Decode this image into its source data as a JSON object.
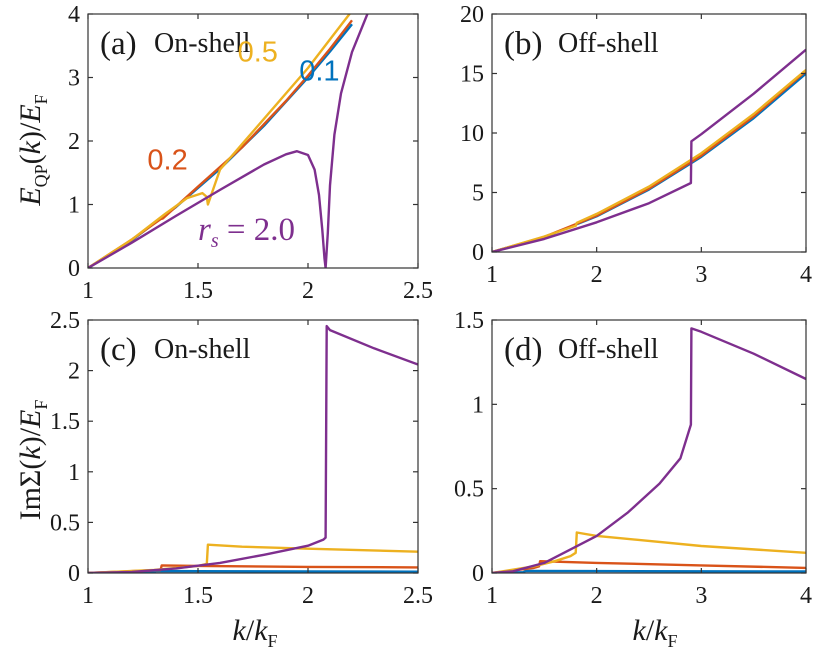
{
  "colors": {
    "rs_0.1": "#0072BD",
    "rs_0.2": "#D95319",
    "rs_0.5": "#EDB120",
    "rs_2.0": "#7E2F8E",
    "axis": "#333333"
  },
  "ylabels": {
    "top": "E_QP(k)/E_F",
    "bottom": "ImΣ(k)/E_F"
  },
  "xlabel": "k/k_F",
  "chart_data": [
    {
      "id": "a",
      "type": "line",
      "panel_label": "(a)",
      "subtitle": "On-shell",
      "xlabel": "",
      "ylabel": "E_QP(k)/E_F",
      "xlim": [
        1,
        2.5
      ],
      "ylim": [
        0,
        4
      ],
      "xticks": [
        1,
        1.5,
        2,
        2.5
      ],
      "yticks": [
        0,
        1,
        2,
        3,
        4
      ],
      "xtick_labels": [
        "1",
        "1.5",
        "2",
        "2.5"
      ],
      "ytick_labels": [
        "0",
        "1",
        "2",
        "3",
        "4"
      ],
      "annotations": [
        {
          "text": "0.5",
          "series": "0.5",
          "x": 1.68,
          "y": 3.25
        },
        {
          "text": "0.1",
          "series": "0.1",
          "x": 1.96,
          "y": 2.95
        },
        {
          "text": "0.2",
          "series": "0.2",
          "x": 1.27,
          "y": 1.55
        }
      ],
      "series": [
        {
          "key": "0.1",
          "x": [
            1,
            1.2,
            1.4,
            1.6,
            1.8,
            2.0,
            2.1,
            2.2
          ],
          "y": [
            0,
            0.44,
            0.96,
            1.56,
            2.24,
            3.0,
            3.41,
            3.84
          ]
        },
        {
          "key": "0.2",
          "x": [
            1,
            1.2,
            1.33,
            1.34,
            1.5,
            1.7,
            1.9,
            2.0,
            2.1,
            2.2
          ],
          "y": [
            0,
            0.45,
            0.77,
            0.78,
            1.28,
            1.9,
            2.63,
            3.03,
            3.45,
            3.9
          ]
        },
        {
          "key": "0.5",
          "x": [
            1,
            1.2,
            1.35,
            1.45,
            1.52,
            1.54,
            1.545,
            1.6,
            1.7,
            1.8,
            1.9,
            2.0,
            2.1,
            2.2
          ],
          "y": [
            0,
            0.45,
            0.85,
            1.1,
            1.18,
            1.12,
            1.0,
            1.55,
            1.95,
            2.35,
            2.75,
            3.15,
            3.6,
            4.05
          ]
        },
        {
          "key": "2.0",
          "x": [
            1,
            1.2,
            1.4,
            1.6,
            1.8,
            1.9,
            1.95,
            2.0,
            2.03,
            2.05,
            2.065,
            2.075,
            2.08,
            2.09,
            2.1,
            2.12,
            2.15,
            2.2,
            2.27
          ],
          "y": [
            0,
            0.4,
            0.82,
            1.23,
            1.63,
            1.79,
            1.84,
            1.78,
            1.55,
            1.15,
            0.6,
            0.15,
            0.0,
            0.55,
            1.3,
            2.1,
            2.75,
            3.4,
            4.0
          ]
        }
      ],
      "rs_label": {
        "prefix": "r",
        "sub": "s",
        "suffix": " = 2.0",
        "x": 1.5,
        "y": 0.6
      }
    },
    {
      "id": "b",
      "type": "line",
      "panel_label": "(b)",
      "subtitle": "Off-shell",
      "xlabel": "",
      "ylabel": "",
      "xlim": [
        1,
        4
      ],
      "ylim": [
        0,
        20
      ],
      "xticks": [
        1,
        2,
        3,
        4
      ],
      "yticks": [
        0,
        5,
        10,
        15,
        20
      ],
      "xtick_labels": [
        "1",
        "2",
        "3",
        "4"
      ],
      "ytick_labels": [
        "0",
        "5",
        "10",
        "15",
        "20"
      ],
      "series": [
        {
          "key": "0.1",
          "x": [
            1,
            1.5,
            2,
            2.5,
            3,
            3.5,
            4
          ],
          "y": [
            0,
            1.25,
            3.0,
            5.25,
            8.0,
            11.25,
            15.0
          ]
        },
        {
          "key": "0.2",
          "x": [
            1,
            1.5,
            2,
            2.5,
            3,
            3.5,
            4
          ],
          "y": [
            0,
            1.27,
            3.05,
            5.33,
            8.1,
            11.4,
            15.2
          ]
        },
        {
          "key": "0.5",
          "x": [
            1,
            1.5,
            1.8,
            1.81,
            2,
            2.5,
            3,
            3.5,
            4
          ],
          "y": [
            0,
            1.3,
            2.2,
            2.45,
            3.2,
            5.5,
            8.3,
            11.6,
            15.3
          ]
        },
        {
          "key": "2.0",
          "x": [
            1,
            1.5,
            2,
            2.5,
            2.9,
            2.905,
            3.0,
            3.5,
            4
          ],
          "y": [
            0,
            1.1,
            2.5,
            4.1,
            5.8,
            9.3,
            9.9,
            13.3,
            17.0
          ]
        }
      ]
    },
    {
      "id": "c",
      "type": "line",
      "panel_label": "(c)",
      "subtitle": "On-shell",
      "xlabel": "k/k_F",
      "ylabel": "ImΣ(k)/E_F",
      "xlim": [
        1,
        2.5
      ],
      "ylim": [
        0,
        2.5
      ],
      "xticks": [
        1,
        1.5,
        2,
        2.5
      ],
      "yticks": [
        0,
        0.5,
        1,
        1.5,
        2,
        2.5
      ],
      "xtick_labels": [
        "1",
        "1.5",
        "2",
        "2.5"
      ],
      "ytick_labels": [
        "0",
        "0.5",
        "1",
        "1.5",
        "2",
        "2.5"
      ],
      "series": [
        {
          "key": "0.1",
          "x": [
            1,
            1.3,
            1.31,
            1.5,
            2.0,
            2.5
          ],
          "y": [
            0,
            0.008,
            0.02,
            0.018,
            0.015,
            0.013
          ]
        },
        {
          "key": "0.2",
          "x": [
            1,
            1.33,
            1.335,
            1.5,
            2.0,
            2.5
          ],
          "y": [
            0,
            0.03,
            0.075,
            0.07,
            0.06,
            0.055
          ]
        },
        {
          "key": "0.5",
          "x": [
            1,
            1.3,
            1.5,
            1.54,
            1.545,
            1.7,
            2.0,
            2.5
          ],
          "y": [
            0,
            0.03,
            0.07,
            0.09,
            0.28,
            0.26,
            0.24,
            0.21
          ]
        },
        {
          "key": "2.0",
          "x": [
            1,
            1.2,
            1.4,
            1.6,
            1.8,
            2.0,
            2.07,
            2.08,
            2.085,
            2.1,
            2.3,
            2.5
          ],
          "y": [
            0,
            0.01,
            0.045,
            0.1,
            0.18,
            0.27,
            0.33,
            0.35,
            2.44,
            2.4,
            2.22,
            2.06
          ]
        }
      ]
    },
    {
      "id": "d",
      "type": "line",
      "panel_label": "(d)",
      "subtitle": "Off-shell",
      "xlabel": "k/k_F",
      "ylabel": "",
      "xlim": [
        1,
        4
      ],
      "ylim": [
        0,
        1.5
      ],
      "xticks": [
        1,
        2,
        3,
        4
      ],
      "yticks": [
        0,
        0.5,
        1,
        1.5
      ],
      "xtick_labels": [
        "1",
        "2",
        "3",
        "4"
      ],
      "ytick_labels": [
        "0",
        "0.5",
        "1",
        "1.5"
      ],
      "series": [
        {
          "key": "0.1",
          "x": [
            1,
            1.3,
            1.32,
            2,
            3,
            4
          ],
          "y": [
            0,
            0.005,
            0.012,
            0.011,
            0.01,
            0.009
          ]
        },
        {
          "key": "0.2",
          "x": [
            1,
            1.4,
            1.45,
            1.46,
            2,
            3,
            4
          ],
          "y": [
            0,
            0.03,
            0.04,
            0.07,
            0.06,
            0.045,
            0.03
          ]
        },
        {
          "key": "0.5",
          "x": [
            1,
            1.4,
            1.6,
            1.75,
            1.8,
            1.81,
            2,
            3,
            4
          ],
          "y": [
            0,
            0.04,
            0.07,
            0.1,
            0.12,
            0.24,
            0.22,
            0.16,
            0.12
          ]
        },
        {
          "key": "2.0",
          "x": [
            1,
            1.2,
            1.5,
            2.0,
            2.3,
            2.6,
            2.8,
            2.9,
            2.905,
            3.0,
            3.5,
            4
          ],
          "y": [
            0,
            0.01,
            0.06,
            0.22,
            0.36,
            0.53,
            0.68,
            0.88,
            1.45,
            1.43,
            1.3,
            1.15
          ]
        }
      ]
    }
  ]
}
